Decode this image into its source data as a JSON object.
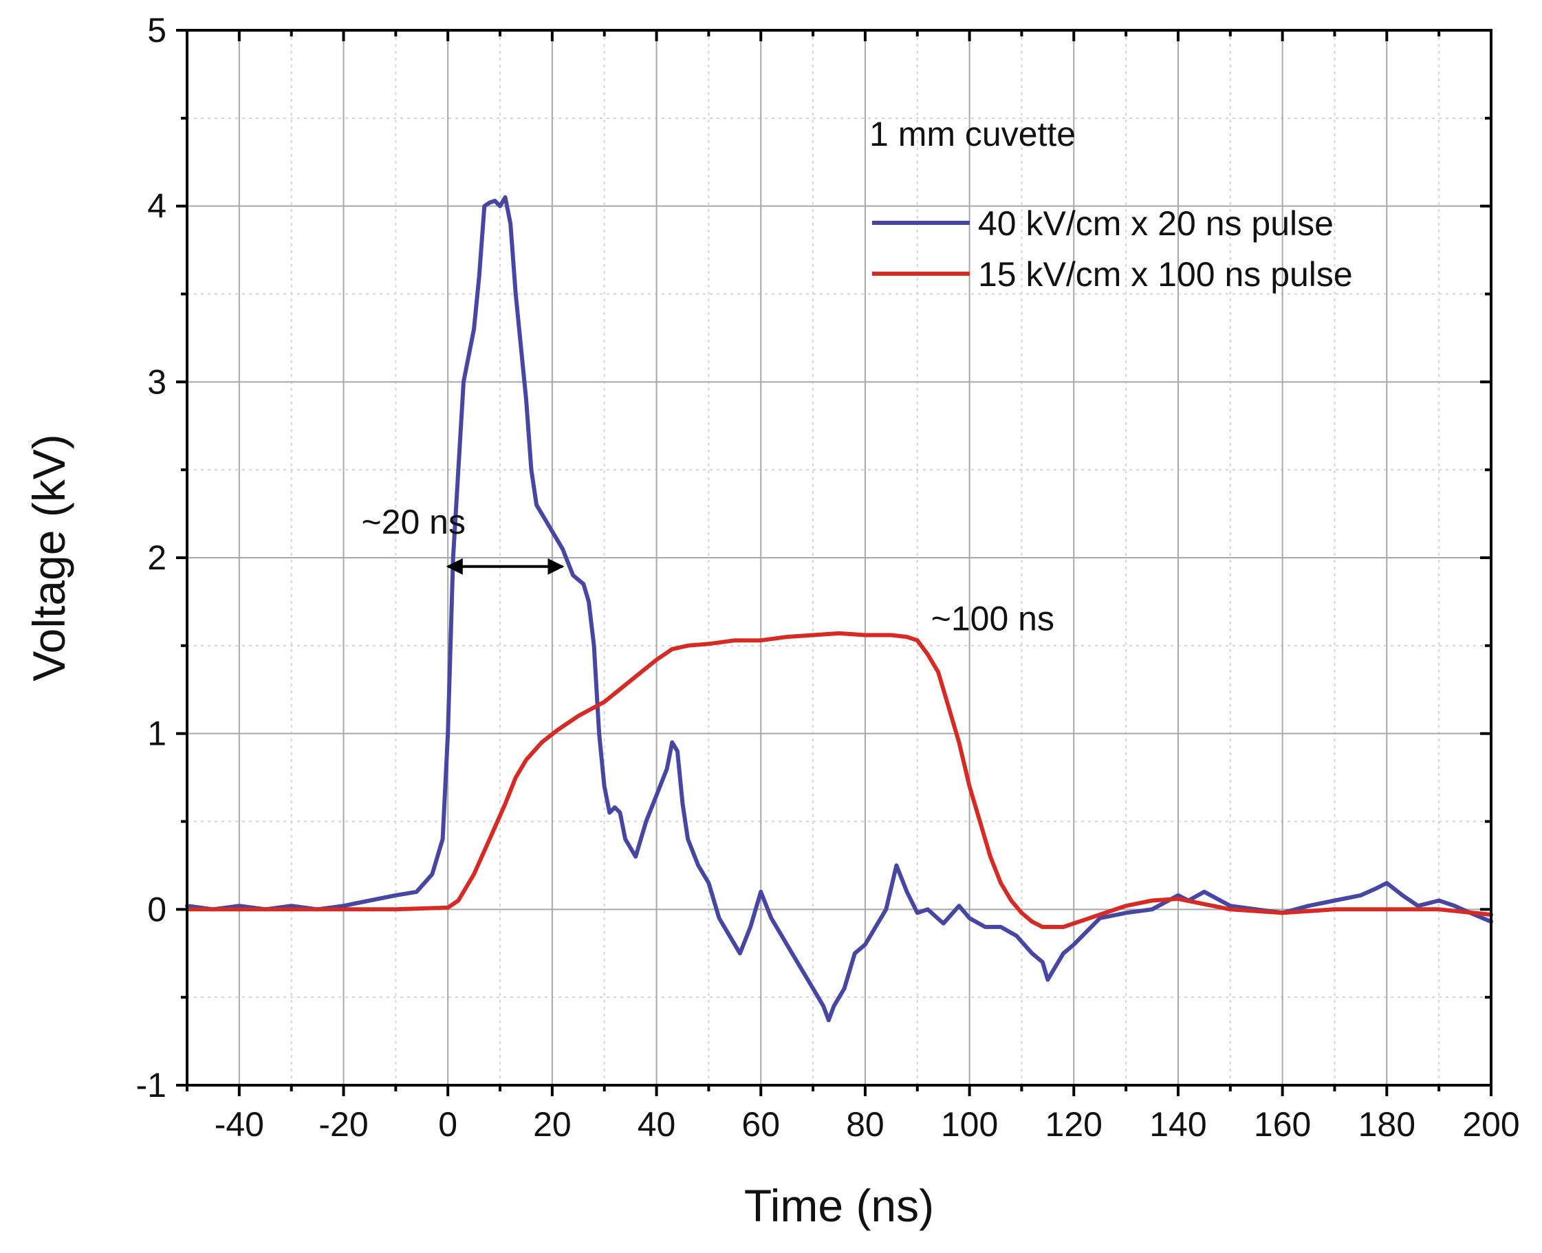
{
  "chart_data": {
    "type": "line",
    "title": "",
    "xlabel": "Time (ns)",
    "ylabel": "Voltage (kV)",
    "xlim": [
      -50,
      200
    ],
    "ylim": [
      -1,
      5
    ],
    "x_ticks": [
      -40,
      -20,
      0,
      20,
      40,
      60,
      80,
      100,
      120,
      140,
      160,
      180,
      200
    ],
    "x_tick_labels": [
      "-40",
      "-20",
      "0",
      "20",
      "40",
      "60",
      "80",
      "100",
      "120",
      "140",
      "160",
      "180",
      "200"
    ],
    "y_ticks": [
      -1,
      0,
      1,
      2,
      3,
      4,
      5
    ],
    "y_tick_labels": [
      "-1",
      "0",
      "1",
      "2",
      "3",
      "4",
      "5"
    ],
    "grid": true,
    "legend_title": "1 mm cuvette",
    "legend_position": "top-right",
    "series": [
      {
        "name": "40 kV/cm x 20 ns pulse",
        "color": "#4747a3",
        "points": [
          [
            -50,
            0.02
          ],
          [
            -45,
            0.0
          ],
          [
            -40,
            0.02
          ],
          [
            -35,
            0.0
          ],
          [
            -30,
            0.02
          ],
          [
            -25,
            0.0
          ],
          [
            -20,
            0.02
          ],
          [
            -15,
            0.05
          ],
          [
            -10,
            0.08
          ],
          [
            -6,
            0.1
          ],
          [
            -3,
            0.2
          ],
          [
            -1,
            0.4
          ],
          [
            0,
            1.0
          ],
          [
            1,
            2.0
          ],
          [
            2,
            2.5
          ],
          [
            3,
            3.0
          ],
          [
            4,
            3.15
          ],
          [
            5,
            3.3
          ],
          [
            6,
            3.6
          ],
          [
            7,
            4.0
          ],
          [
            8,
            4.02
          ],
          [
            9,
            4.03
          ],
          [
            10,
            4.0
          ],
          [
            11,
            4.05
          ],
          [
            12,
            3.9
          ],
          [
            13,
            3.5
          ],
          [
            14,
            3.2
          ],
          [
            15,
            2.9
          ],
          [
            16,
            2.5
          ],
          [
            17,
            2.3
          ],
          [
            19,
            2.2
          ],
          [
            22,
            2.05
          ],
          [
            24,
            1.9
          ],
          [
            26,
            1.85
          ],
          [
            27,
            1.75
          ],
          [
            28,
            1.5
          ],
          [
            29,
            1.0
          ],
          [
            30,
            0.7
          ],
          [
            31,
            0.55
          ],
          [
            32,
            0.58
          ],
          [
            33,
            0.55
          ],
          [
            34,
            0.4
          ],
          [
            36,
            0.3
          ],
          [
            38,
            0.5
          ],
          [
            40,
            0.65
          ],
          [
            42,
            0.8
          ],
          [
            43,
            0.95
          ],
          [
            44,
            0.9
          ],
          [
            45,
            0.6
          ],
          [
            46,
            0.4
          ],
          [
            48,
            0.25
          ],
          [
            50,
            0.15
          ],
          [
            52,
            -0.05
          ],
          [
            54,
            -0.15
          ],
          [
            56,
            -0.25
          ],
          [
            58,
            -0.1
          ],
          [
            60,
            0.1
          ],
          [
            62,
            -0.05
          ],
          [
            64,
            -0.15
          ],
          [
            66,
            -0.25
          ],
          [
            68,
            -0.35
          ],
          [
            70,
            -0.45
          ],
          [
            72,
            -0.55
          ],
          [
            73,
            -0.63
          ],
          [
            74,
            -0.55
          ],
          [
            76,
            -0.45
          ],
          [
            78,
            -0.25
          ],
          [
            80,
            -0.2
          ],
          [
            82,
            -0.1
          ],
          [
            84,
            0.0
          ],
          [
            86,
            0.25
          ],
          [
            88,
            0.1
          ],
          [
            90,
            -0.02
          ],
          [
            92,
            0.0
          ],
          [
            95,
            -0.08
          ],
          [
            98,
            0.02
          ],
          [
            100,
            -0.05
          ],
          [
            103,
            -0.1
          ],
          [
            106,
            -0.1
          ],
          [
            109,
            -0.15
          ],
          [
            112,
            -0.25
          ],
          [
            114,
            -0.3
          ],
          [
            115,
            -0.4
          ],
          [
            116,
            -0.35
          ],
          [
            118,
            -0.25
          ],
          [
            120,
            -0.2
          ],
          [
            125,
            -0.05
          ],
          [
            130,
            -0.02
          ],
          [
            135,
            0.0
          ],
          [
            140,
            0.08
          ],
          [
            142,
            0.05
          ],
          [
            145,
            0.1
          ],
          [
            150,
            0.02
          ],
          [
            155,
            0.0
          ],
          [
            160,
            -0.02
          ],
          [
            165,
            0.02
          ],
          [
            170,
            0.05
          ],
          [
            175,
            0.08
          ],
          [
            178,
            0.12
          ],
          [
            180,
            0.15
          ],
          [
            183,
            0.08
          ],
          [
            186,
            0.02
          ],
          [
            190,
            0.05
          ],
          [
            193,
            0.02
          ],
          [
            196,
            -0.02
          ],
          [
            200,
            -0.07
          ]
        ]
      },
      {
        "name": "15 kV/cm x 100 ns pulse",
        "color": "#d62b24",
        "points": [
          [
            -50,
            0.0
          ],
          [
            -30,
            0.0
          ],
          [
            -10,
            0.0
          ],
          [
            0,
            0.01
          ],
          [
            2,
            0.05
          ],
          [
            5,
            0.2
          ],
          [
            8,
            0.4
          ],
          [
            11,
            0.6
          ],
          [
            13,
            0.75
          ],
          [
            15,
            0.85
          ],
          [
            18,
            0.95
          ],
          [
            21,
            1.02
          ],
          [
            25,
            1.1
          ],
          [
            30,
            1.18
          ],
          [
            35,
            1.3
          ],
          [
            40,
            1.42
          ],
          [
            43,
            1.48
          ],
          [
            46,
            1.5
          ],
          [
            50,
            1.51
          ],
          [
            55,
            1.53
          ],
          [
            60,
            1.53
          ],
          [
            65,
            1.55
          ],
          [
            70,
            1.56
          ],
          [
            75,
            1.57
          ],
          [
            80,
            1.56
          ],
          [
            85,
            1.56
          ],
          [
            88,
            1.55
          ],
          [
            90,
            1.53
          ],
          [
            92,
            1.45
          ],
          [
            94,
            1.35
          ],
          [
            96,
            1.15
          ],
          [
            98,
            0.95
          ],
          [
            100,
            0.7
          ],
          [
            102,
            0.5
          ],
          [
            104,
            0.3
          ],
          [
            106,
            0.15
          ],
          [
            108,
            0.05
          ],
          [
            110,
            -0.02
          ],
          [
            112,
            -0.07
          ],
          [
            114,
            -0.1
          ],
          [
            118,
            -0.1
          ],
          [
            122,
            -0.06
          ],
          [
            126,
            -0.02
          ],
          [
            130,
            0.02
          ],
          [
            135,
            0.05
          ],
          [
            140,
            0.06
          ],
          [
            145,
            0.03
          ],
          [
            150,
            0.0
          ],
          [
            160,
            -0.02
          ],
          [
            170,
            0.0
          ],
          [
            180,
            0.0
          ],
          [
            190,
            0.0
          ],
          [
            200,
            -0.03
          ]
        ]
      }
    ],
    "annotations": [
      {
        "text": "~20 ns",
        "x": -15,
        "y": 2.2,
        "arrow": {
          "from_x": 0,
          "to_x": 22,
          "y": 1.95
        }
      },
      {
        "text": "~100 ns",
        "x": 95,
        "y": 1.65
      }
    ]
  }
}
